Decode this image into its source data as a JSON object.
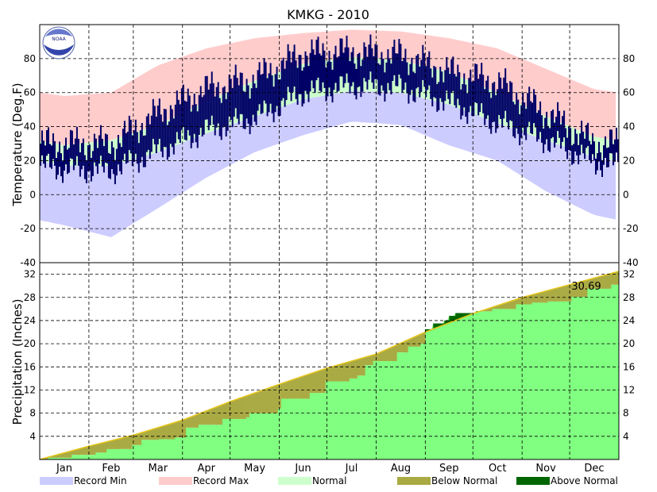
{
  "chart_data": [
    {
      "type": "area",
      "title": "KMKG - 2010",
      "ylabel": "Temperature (Deg.F)",
      "ylim": [
        -40,
        100
      ],
      "yticks": [
        -40,
        -20,
        0,
        20,
        40,
        60,
        80
      ],
      "months": [
        "Jan",
        "Feb",
        "Mar",
        "Apr",
        "May",
        "Jun",
        "Jul",
        "Aug",
        "Sep",
        "Oct",
        "Nov",
        "Dec"
      ],
      "grid": true,
      "normal_high_by_month": [
        29,
        32,
        41,
        55,
        67,
        77,
        81,
        79,
        72,
        60,
        46,
        34
      ],
      "normal_low_by_month": [
        17,
        17,
        25,
        36,
        46,
        56,
        61,
        60,
        53,
        42,
        32,
        22
      ],
      "record_high_by_month": [
        58,
        60,
        76,
        86,
        92,
        95,
        97,
        96,
        92,
        86,
        74,
        62
      ],
      "record_low_by_month": [
        -18,
        -25,
        -8,
        10,
        25,
        35,
        43,
        41,
        29,
        20,
        2,
        -12
      ],
      "observed_high_by_month": [
        30,
        30,
        48,
        62,
        68,
        83,
        84,
        82,
        72,
        66,
        48,
        30
      ],
      "observed_low_by_month": [
        15,
        14,
        26,
        38,
        45,
        60,
        64,
        63,
        54,
        42,
        32,
        19
      ],
      "colors": {
        "record_min": "#ccccff",
        "record_max": "#ffcccc",
        "normal": "#ccffcc",
        "observed": "#000066"
      }
    },
    {
      "type": "area",
      "ylabel": "Precipitation (Inches)",
      "ylim": [
        0,
        34
      ],
      "yticks": [
        4,
        8,
        12,
        16,
        20,
        24,
        28,
        32
      ],
      "months": [
        "Jan",
        "Feb",
        "Mar",
        "Apr",
        "May",
        "Jun",
        "Jul",
        "Aug",
        "Sep",
        "Oct",
        "Nov",
        "Dec"
      ],
      "grid": true,
      "total_label": "30.69",
      "normal_cumulative": [
        [
          0,
          0
        ],
        [
          31,
          2.3
        ],
        [
          59,
          4.2
        ],
        [
          90,
          6.8
        ],
        [
          120,
          10.0
        ],
        [
          151,
          13.0
        ],
        [
          181,
          15.8
        ],
        [
          212,
          18.2
        ],
        [
          243,
          22.0
        ],
        [
          273,
          25.2
        ],
        [
          304,
          28.0
        ],
        [
          334,
          30.2
        ],
        [
          365,
          32.5
        ]
      ],
      "observed_cumulative": [
        [
          0,
          0
        ],
        [
          5,
          0.3
        ],
        [
          20,
          0.8
        ],
        [
          35,
          1.2
        ],
        [
          42,
          1.8
        ],
        [
          58,
          2.5
        ],
        [
          64,
          3.4
        ],
        [
          75,
          3.5
        ],
        [
          85,
          3.8
        ],
        [
          92,
          5.5
        ],
        [
          100,
          6.0
        ],
        [
          115,
          7.0
        ],
        [
          130,
          7.3
        ],
        [
          132,
          8.0
        ],
        [
          150,
          8.8
        ],
        [
          152,
          10.5
        ],
        [
          170,
          11.5
        ],
        [
          180,
          13.5
        ],
        [
          195,
          14.0
        ],
        [
          200,
          14.5
        ],
        [
          205,
          16.3
        ],
        [
          210,
          17.0
        ],
        [
          225,
          18.5
        ],
        [
          232,
          19.5
        ],
        [
          240,
          20.0
        ],
        [
          243,
          22.5
        ],
        [
          248,
          23.5
        ],
        [
          255,
          24.0
        ],
        [
          258,
          24.8
        ],
        [
          262,
          25.3
        ],
        [
          275,
          25.6
        ],
        [
          285,
          26.0
        ],
        [
          300,
          26.8
        ],
        [
          310,
          27.1
        ],
        [
          320,
          27.3
        ],
        [
          335,
          28.1
        ],
        [
          345,
          29.5
        ],
        [
          360,
          30.2
        ],
        [
          365,
          30.69
        ]
      ],
      "colors": {
        "observed": "#80ff80",
        "below_normal": "#aaaa44",
        "above_normal": "#006600",
        "normal_line": "#e6c51a"
      }
    }
  ],
  "legend": [
    {
      "label": "Record Min",
      "color": "#ccccff"
    },
    {
      "label": "Record Max",
      "color": "#ffcccc"
    },
    {
      "label": "Normal",
      "color": "#ccffcc"
    },
    {
      "label": "Below Normal",
      "color": "#aaaa44"
    },
    {
      "label": "Above Normal",
      "color": "#006600"
    }
  ],
  "logo_text": "NOAA"
}
